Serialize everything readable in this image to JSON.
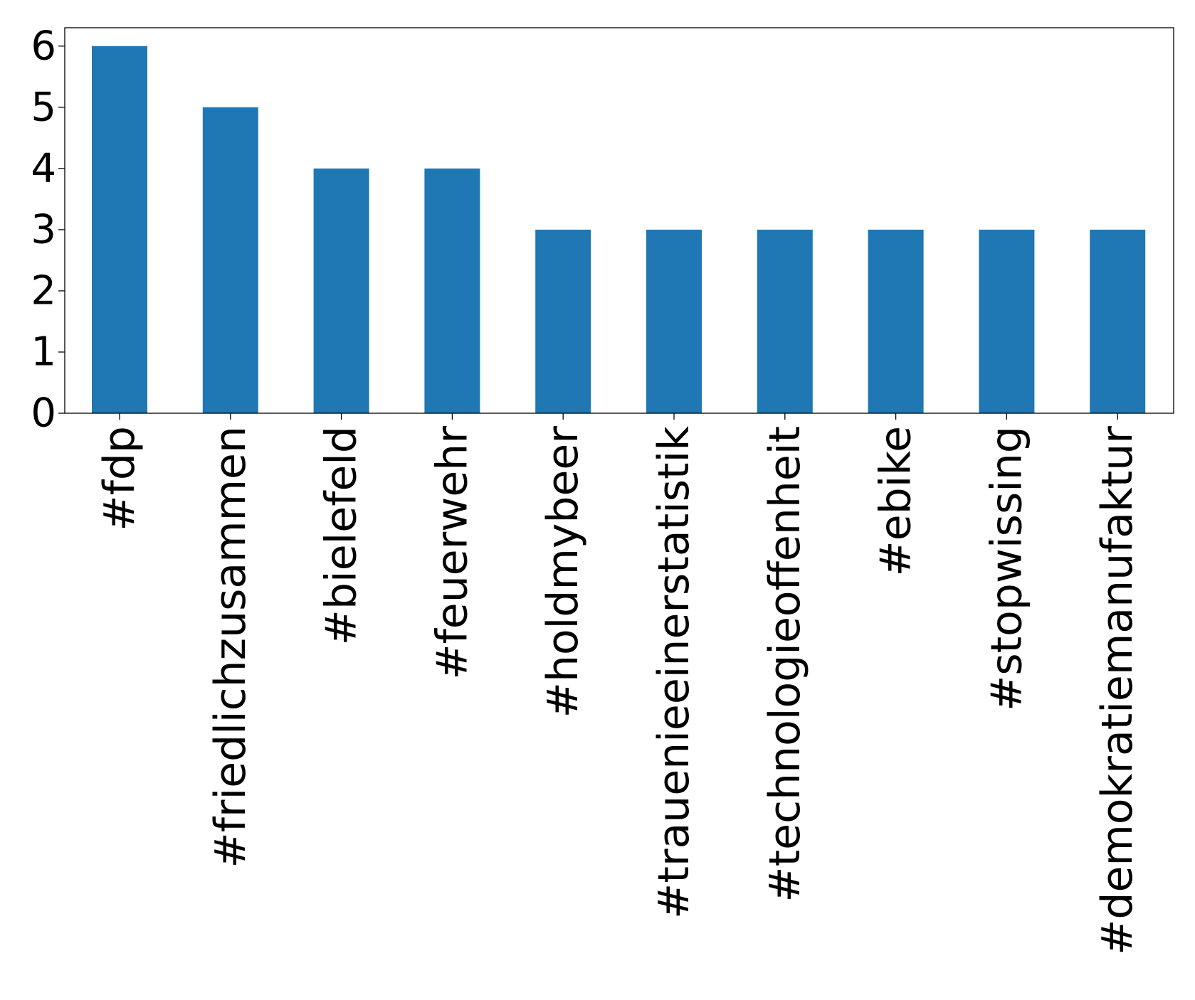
{
  "chart_data": {
    "type": "bar",
    "title": "",
    "xlabel": "",
    "ylabel": "",
    "categories": [
      "#fdp",
      "#friedlichzusammen",
      "#bielefeld",
      "#feuerwehr",
      "#holdmybeer",
      "#trauenieeinerstatistik",
      "#technologieoffenheit",
      "#ebike",
      "#stopwissing",
      "#demokratiemanufaktur"
    ],
    "values": [
      6,
      5,
      4,
      4,
      3,
      3,
      3,
      3,
      3,
      3
    ],
    "ylim": [
      0,
      6.3
    ],
    "yticks": [
      0,
      1,
      2,
      3,
      4,
      5,
      6
    ],
    "grid": false,
    "legend": "none",
    "bar_color": "#1f77b4"
  }
}
